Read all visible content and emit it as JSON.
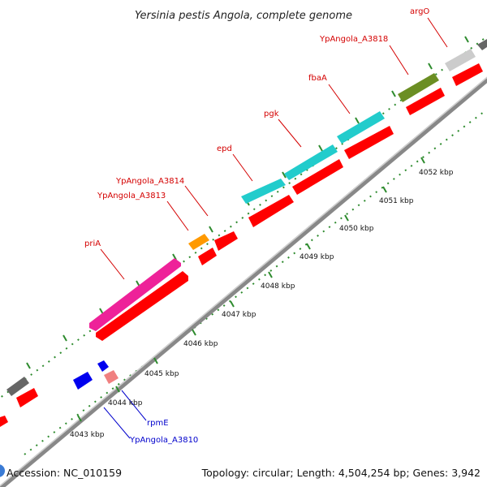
{
  "title": "Yersinia pestis Angola, complete genome",
  "footer": {
    "accession": "Accession: NC_010159",
    "summary": "Topology: circular; Length: 4,504,254 bp; Genes: 3,942"
  },
  "colors": {
    "backbone": "#808080",
    "tick_dots": "#2e8b2e",
    "forward_label": "#d40000",
    "reverse_label": "#0000cc",
    "cds_red": "#ff0000",
    "cyan": "#22cccc",
    "magenta": "#ee2299",
    "olive": "#6b8e23",
    "orange": "#ff9900",
    "light_gray": "#cccccc",
    "dark_gray": "#666666",
    "blue": "#0000ee",
    "pink": "#f08080"
  },
  "scale_ticks": [
    "4043 kbp",
    "4044 kbp",
    "4045 kbp",
    "4046 kbp",
    "4047 kbp",
    "4048 kbp",
    "4049 kbp",
    "4050 kbp",
    "4051 kbp",
    "4052 kbp"
  ],
  "gene_labels": {
    "argO": "argO",
    "ypa3818": "YpAngola_A3818",
    "fbaA": "fbaA",
    "pgk": "pgk",
    "epd": "epd",
    "ypa3814": "YpAngola_A3814",
    "ypa3813": "YpAngola_A3813",
    "priA": "priA",
    "rpmE": "rpmE",
    "ypa3810": "YpAngola_A3810"
  }
}
